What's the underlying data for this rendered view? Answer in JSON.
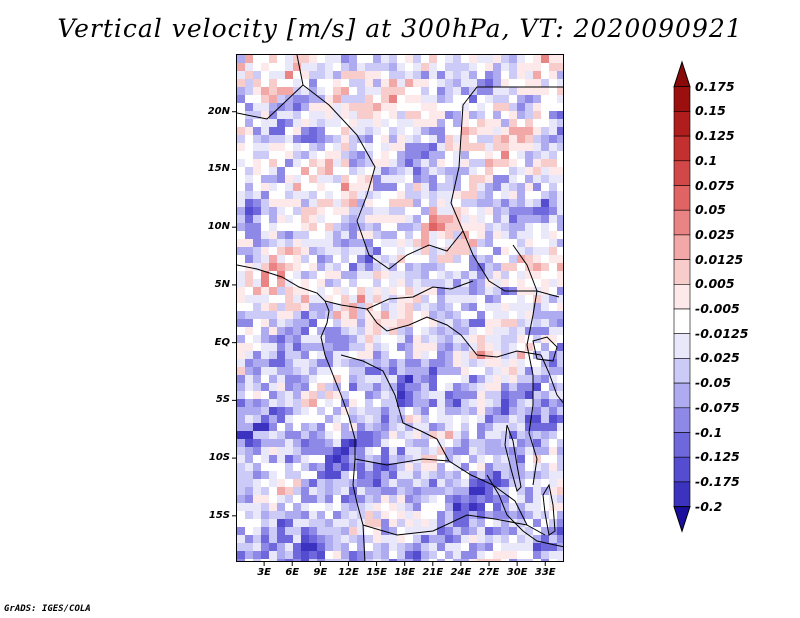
{
  "title": "Vertical velocity [m/s] at 300hPa, VT: 2020090921",
  "footer": "GrADS: IGES/COLA",
  "map": {
    "lat_range": [
      -19,
      25
    ],
    "lon_range": [
      0,
      35
    ],
    "lat_labels": [
      {
        "value": 20,
        "text": "20N"
      },
      {
        "value": 15,
        "text": "15N"
      },
      {
        "value": 10,
        "text": "10N"
      },
      {
        "value": 5,
        "text": "5N"
      },
      {
        "value": 0,
        "text": "EQ"
      },
      {
        "value": -5,
        "text": "5S"
      },
      {
        "value": -10,
        "text": "10S"
      },
      {
        "value": -15,
        "text": "15S"
      }
    ],
    "lon_labels": [
      {
        "value": 3,
        "text": "3E"
      },
      {
        "value": 6,
        "text": "6E"
      },
      {
        "value": 9,
        "text": "9E"
      },
      {
        "value": 12,
        "text": "12E"
      },
      {
        "value": 15,
        "text": "15E"
      },
      {
        "value": 18,
        "text": "18E"
      },
      {
        "value": 21,
        "text": "21E"
      },
      {
        "value": 24,
        "text": "24E"
      },
      {
        "value": 27,
        "text": "27E"
      },
      {
        "value": 30,
        "text": "30E"
      },
      {
        "value": 33,
        "text": "33E"
      }
    ]
  },
  "colorbar": {
    "levels": [
      {
        "label": "0.175",
        "color": "#9b0f0f"
      },
      {
        "label": "0.15",
        "color": "#b01d1d"
      },
      {
        "label": "0.125",
        "color": "#c23030"
      },
      {
        "label": "0.1",
        "color": "#d24747"
      },
      {
        "label": "0.075",
        "color": "#e06464"
      },
      {
        "label": "0.05",
        "color": "#ea8484"
      },
      {
        "label": "0.025",
        "color": "#f3a8a8"
      },
      {
        "label": "0.0125",
        "color": "#f9cccc"
      },
      {
        "label": "0.005",
        "color": "#fde9e9"
      },
      {
        "label": "-0.005",
        "color": "#ffffff"
      },
      {
        "label": "-0.0125",
        "color": "#e9e8fb"
      },
      {
        "label": "-0.025",
        "color": "#cccaf6"
      },
      {
        "label": "-0.05",
        "color": "#aeabf0"
      },
      {
        "label": "-0.075",
        "color": "#8e89e7"
      },
      {
        "label": "-0.1",
        "color": "#6e68dc"
      },
      {
        "label": "-0.125",
        "color": "#544dcf"
      },
      {
        "label": "-0.175",
        "color": "#3b33bf"
      },
      {
        "label": "-0.2",
        "color": "#2a1fae"
      }
    ],
    "bottom_color": "#1a0e9c"
  }
}
